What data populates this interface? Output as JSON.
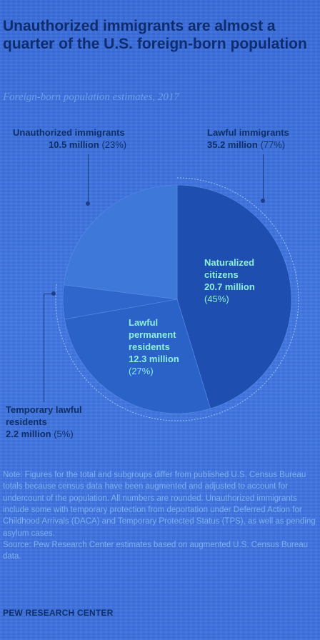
{
  "title": "Unauthorized immigrants are almost a quarter of the U.S. foreign-born population",
  "subtitle": "Foreign-born population estimates, 2017",
  "chart_data": {
    "type": "pie",
    "unit": "million",
    "slices": [
      {
        "name": "Unauthorized immigrants",
        "value_text": "10.5 million",
        "value": 10.5,
        "percent": 23,
        "percent_text": "(23%)",
        "color": "#3e78d8"
      },
      {
        "name": "Temporary lawful residents",
        "value_text": "2.2 million",
        "value": 2.2,
        "percent": 5,
        "percent_text": "(5%)",
        "color": "#2f66cc"
      },
      {
        "name": "Lawful permanent residents",
        "value_text": "12.3 million",
        "value": 12.3,
        "percent": 27,
        "percent_text": "(27%)",
        "color": "#2a62c8"
      },
      {
        "name": "Naturalized citizens",
        "value_text": "20.7 million",
        "value": 20.7,
        "percent": 45,
        "percent_text": "(45%)",
        "color": "#1e4fb0"
      }
    ],
    "groups": [
      {
        "name": "Lawful immigrants",
        "value_text": "35.2 million",
        "value": 35.2,
        "percent": 77,
        "percent_text": "(77%)"
      }
    ]
  },
  "colors": {
    "background": "#3f6fd8",
    "title": "#0d2d6e",
    "lawful_outline": "#9ec3f5"
  },
  "note": "Note: Figures for the total and subgroups differ from published U.S. Census Bureau totals because census data have been augmented and adjusted to account for undercount of the population. All numbers are rounded. Unauthorized immigrants include some with temporary protection from deportation under Deferred Action for Childhood Arrivals (DACA) and Temporary Protected Status (TPS), as well as pending asylum cases.",
  "source": "Source: Pew Research Center estimates based on augmented U.S. Census Bureau data.",
  "brand": "PEW RESEARCH CENTER"
}
